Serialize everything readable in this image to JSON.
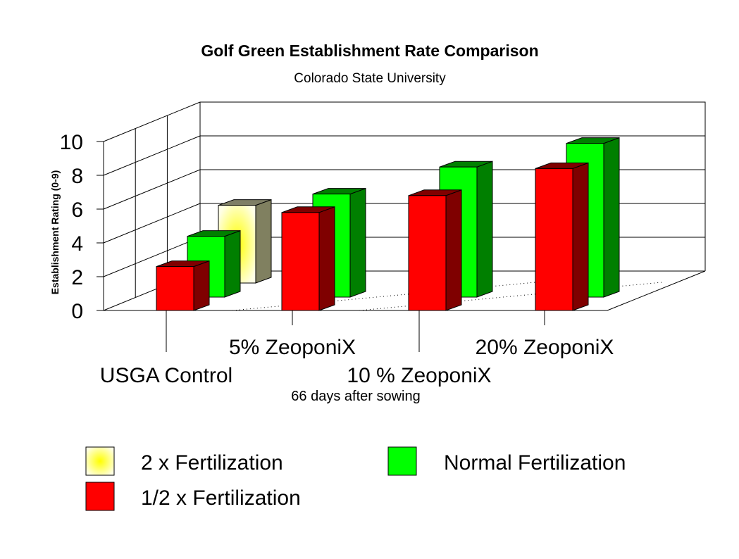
{
  "chart_data": {
    "type": "bar",
    "title": "Golf Green Establishment Rate Comparison",
    "subtitle": "Colorado State University",
    "xlabel": "66 days after sowing",
    "ylabel": "Establishment Rating (0-9)",
    "ylim": [
      0,
      10
    ],
    "yticks": [
      "0",
      "2",
      "4",
      "6",
      "8",
      "10"
    ],
    "categories": [
      "USGA Control",
      "5% ZeoponiX",
      "10 % ZeoponiX",
      "20% ZeoponiX"
    ],
    "series": [
      {
        "name": "1/2 x Fertilization",
        "values": [
          2.6,
          5.8,
          6.8,
          8.4
        ]
      },
      {
        "name": "Normal Fertilization",
        "values": [
          3.6,
          6.1,
          7.7,
          9.1
        ]
      },
      {
        "name": "2 x Fertilization",
        "values": [
          4.6,
          null,
          null,
          null
        ]
      }
    ],
    "grid": true,
    "legend_position": "bottom",
    "colors": {
      "half": "#ff0000",
      "half_side": "#7f0000",
      "half_top": "#800000",
      "normal": "#00ff00",
      "normal_side": "#007f00",
      "normal_top": "#008000",
      "double_center": "#ffff00",
      "double_edge": "#ffffe6",
      "double_side": "#808060",
      "double_top": "#7f7f66"
    }
  }
}
